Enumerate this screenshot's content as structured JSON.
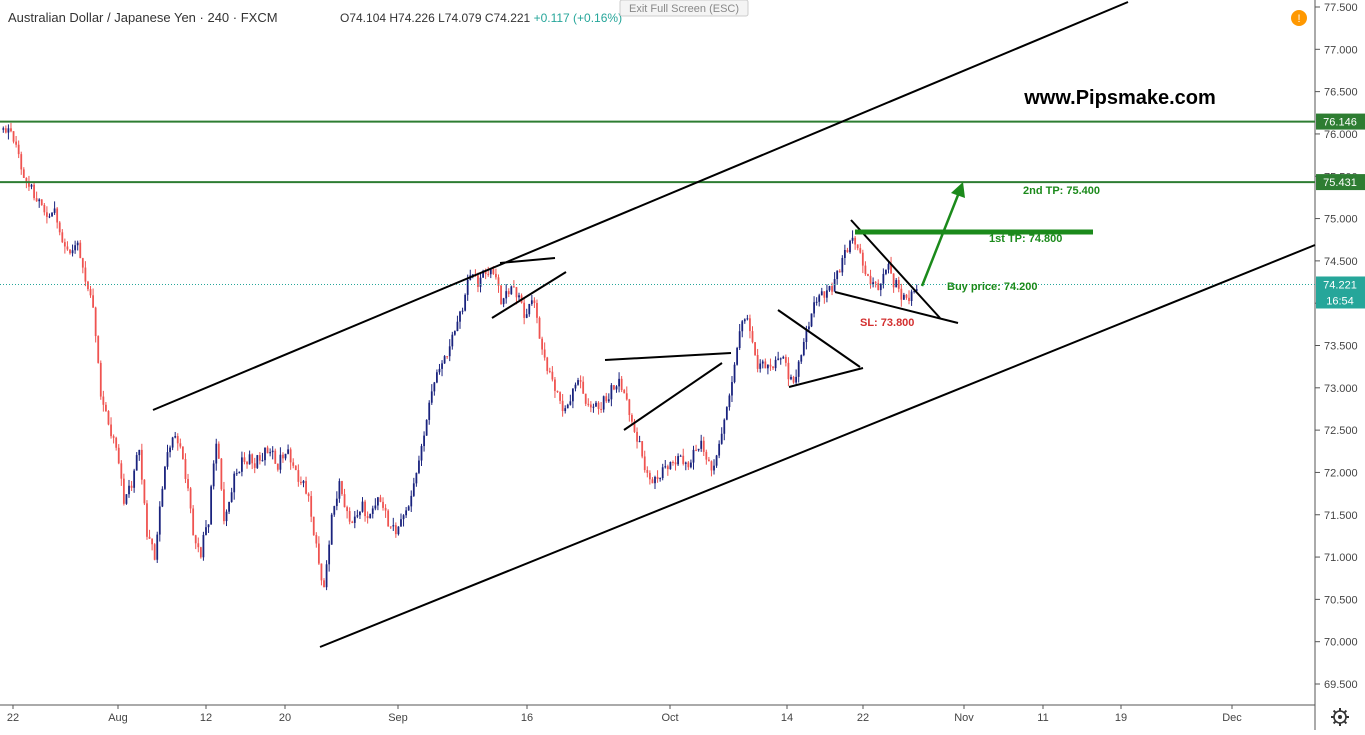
{
  "header": {
    "symbol": "Australian Dollar / Japanese Yen",
    "interval": "240",
    "exchange": "FXCM",
    "open": "O74.104",
    "high": "H74.226",
    "low": "L74.079",
    "close": "C74.221",
    "change": "+0.117 (+0.16%)"
  },
  "exit_fullscreen_label": "Exit Full Screen (ESC)",
  "alert_glyph": "!",
  "watermark": "www.Pipsmake.com",
  "colors": {
    "up": "#1a237e",
    "down": "#ef5350",
    "level": "#2e7d32",
    "price": "#26a69a",
    "target": "#1b8a1b"
  },
  "chart_data": {
    "type": "candlestick",
    "instrument": "AUD/JPY",
    "ylim": [
      69.3,
      77.6
    ],
    "y_ticks": [
      "69.500",
      "70.000",
      "70.500",
      "71.000",
      "71.500",
      "72.000",
      "72.500",
      "73.000",
      "73.500",
      "74.000",
      "74.500",
      "75.000",
      "75.500",
      "76.000",
      "76.500",
      "77.000",
      "77.500"
    ],
    "x_ticks": [
      "22",
      "Aug",
      "12",
      "20",
      "Sep",
      "16",
      "Oct",
      "14",
      "22",
      "Nov",
      "11",
      "19",
      "Dec"
    ],
    "price_path": [
      [
        76.05,
        76.1
      ],
      [
        76.0,
        76.1
      ],
      [
        75.8,
        75.9
      ],
      [
        75.45,
        75.5
      ],
      [
        75.4,
        75.35
      ],
      [
        75.2,
        75.3
      ],
      [
        74.95,
        75.0
      ],
      [
        75.05,
        75.1
      ],
      [
        74.7,
        74.8
      ],
      [
        74.6,
        74.7
      ],
      [
        74.7,
        74.75
      ],
      [
        74.2,
        74.3
      ],
      [
        73.9,
        74.0
      ],
      [
        72.9,
        73.0
      ],
      [
        72.6,
        72.6
      ],
      [
        72.3,
        72.4
      ],
      [
        71.6,
        71.7
      ],
      [
        71.8,
        71.9
      ],
      [
        72.3,
        72.3
      ],
      [
        71.3,
        71.4
      ],
      [
        71.0,
        71.0
      ],
      [
        71.8,
        71.9
      ],
      [
        72.3,
        72.4
      ],
      [
        72.4,
        72.5
      ],
      [
        72.0,
        72.1
      ],
      [
        71.3,
        71.2
      ],
      [
        71.0,
        71.1
      ],
      [
        71.4,
        71.5
      ],
      [
        72.4,
        72.5
      ],
      [
        71.5,
        71.4
      ],
      [
        71.8,
        71.9
      ],
      [
        72.0,
        72.1
      ],
      [
        72.1,
        72.2
      ],
      [
        72.1,
        72.2
      ],
      [
        72.2,
        72.3
      ],
      [
        72.25,
        72.3
      ],
      [
        72.0,
        72.1
      ],
      [
        72.2,
        72.3
      ],
      [
        72.1,
        72.1
      ],
      [
        71.9,
        72.0
      ],
      [
        71.7,
        71.6
      ],
      [
        71.1,
        71.0
      ],
      [
        70.6,
        70.6
      ],
      [
        71.5,
        71.5
      ],
      [
        71.9,
        71.9
      ],
      [
        71.5,
        71.4
      ],
      [
        71.4,
        71.4
      ],
      [
        71.6,
        71.5
      ],
      [
        71.5,
        71.6
      ],
      [
        71.7,
        71.8
      ],
      [
        71.5,
        71.4
      ],
      [
        71.3,
        71.2
      ],
      [
        71.4,
        71.5
      ],
      [
        71.6,
        71.7
      ],
      [
        72.0,
        72.1
      ],
      [
        72.4,
        72.5
      ],
      [
        72.9,
        73.0
      ],
      [
        73.2,
        73.3
      ],
      [
        73.4,
        73.5
      ],
      [
        73.7,
        73.8
      ],
      [
        73.9,
        74.0
      ],
      [
        74.3,
        74.4
      ],
      [
        74.2,
        74.3
      ],
      [
        74.4,
        74.4
      ],
      [
        74.4,
        74.5
      ],
      [
        74.0,
        74.0
      ],
      [
        74.1,
        74.2
      ],
      [
        74.1,
        74.2
      ],
      [
        73.9,
        73.8
      ],
      [
        74.1,
        74.2
      ],
      [
        73.6,
        73.5
      ],
      [
        73.2,
        73.2
      ],
      [
        73.0,
        73.0
      ],
      [
        72.8,
        72.7
      ],
      [
        72.9,
        72.9
      ],
      [
        73.1,
        73.1
      ],
      [
        72.8,
        72.7
      ],
      [
        72.8,
        72.8
      ],
      [
        72.8,
        72.9
      ],
      [
        72.9,
        73.0
      ],
      [
        73.0,
        73.1
      ],
      [
        72.9,
        72.9
      ],
      [
        72.6,
        72.5
      ],
      [
        72.4,
        72.3
      ],
      [
        72.0,
        71.9
      ],
      [
        71.9,
        71.8
      ],
      [
        72.0,
        72.0
      ],
      [
        72.1,
        72.1
      ],
      [
        72.2,
        72.3
      ],
      [
        72.1,
        72.0
      ],
      [
        72.2,
        72.2
      ],
      [
        72.3,
        72.3
      ],
      [
        72.1,
        72.0
      ],
      [
        72.2,
        72.3
      ],
      [
        72.6,
        72.7
      ],
      [
        73.0,
        73.1
      ],
      [
        73.6,
        73.8
      ],
      [
        73.8,
        73.9
      ],
      [
        73.4,
        73.3
      ],
      [
        73.3,
        73.3
      ],
      [
        73.2,
        73.2
      ],
      [
        73.3,
        73.4
      ],
      [
        73.3,
        73.2
      ],
      [
        73.1,
        73.1
      ],
      [
        73.4,
        73.5
      ],
      [
        73.7,
        73.8
      ],
      [
        74.0,
        74.1
      ],
      [
        74.1,
        74.2
      ],
      [
        74.2,
        74.3
      ],
      [
        74.4,
        74.5
      ],
      [
        74.6,
        74.7
      ],
      [
        74.7,
        74.7
      ],
      [
        74.5,
        74.4
      ],
      [
        74.3,
        74.3
      ],
      [
        74.2,
        74.1
      ],
      [
        74.4,
        74.5
      ],
      [
        74.2,
        74.3
      ],
      [
        74.1,
        74.1
      ],
      [
        74.1,
        74.1
      ],
      [
        74.2,
        74.2
      ]
    ],
    "horizontal_levels": [
      {
        "label": "76.146",
        "value": 76.146
      },
      {
        "label": "75.431",
        "value": 75.431
      }
    ],
    "last_price": {
      "label": "74.221",
      "value": 74.221,
      "countdown": "16:54"
    },
    "annotations": {
      "tp2": "2nd TP: 75.400",
      "tp1": "1st TP: 74.800",
      "buy": "Buy price: 74.200",
      "sl": "SL: 73.800"
    }
  }
}
